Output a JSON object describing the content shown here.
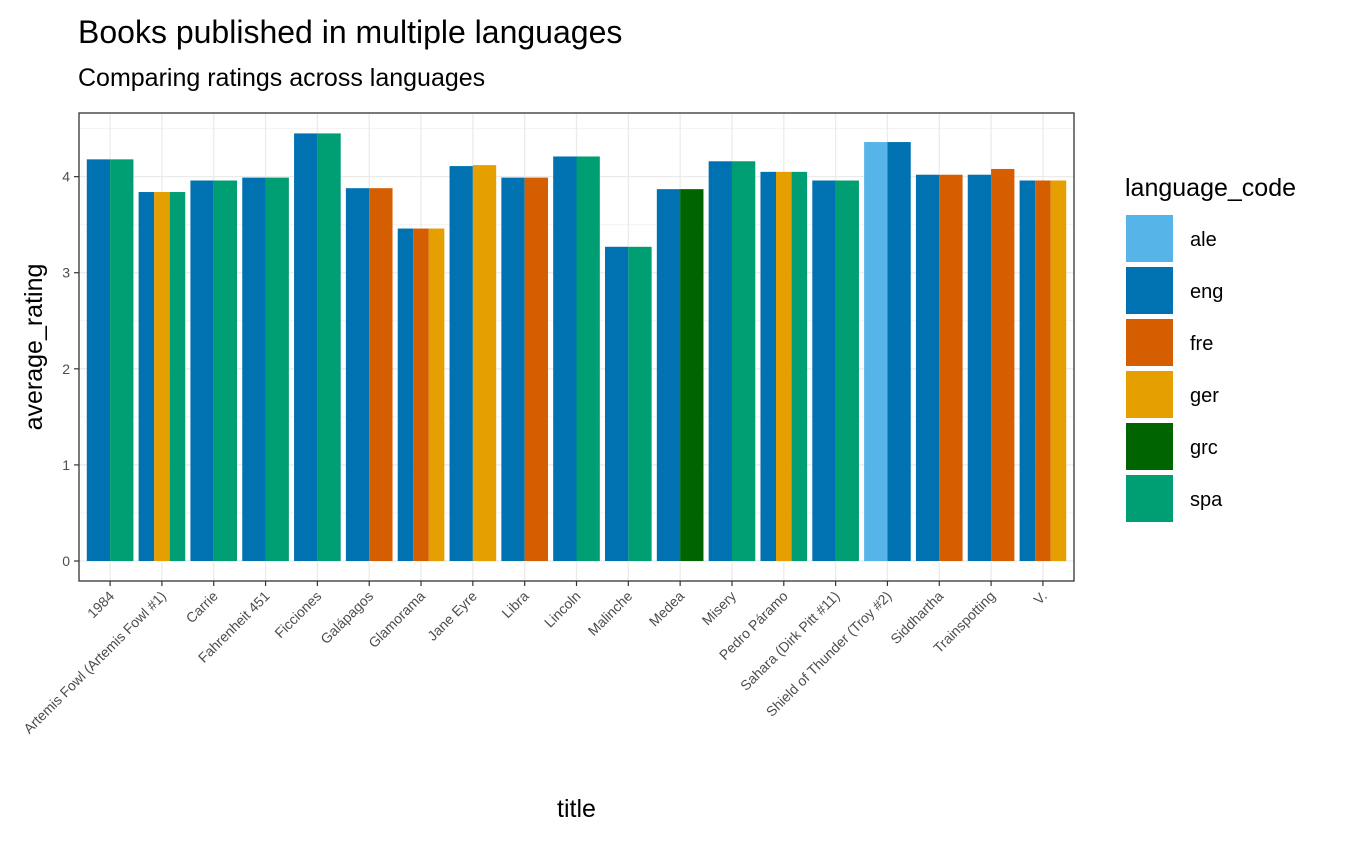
{
  "chart_data": {
    "type": "bar",
    "title": "Books published in multiple languages",
    "subtitle": "Comparing ratings across languages",
    "xlabel": "title",
    "ylabel": "average_rating",
    "ylim": [
      0,
      4.6
    ],
    "yticks": [
      0,
      1,
      2,
      3,
      4
    ],
    "grid": true,
    "legend_placement": "right",
    "legend_title": "language_code",
    "languages": [
      {
        "code": "ale",
        "color": "#56B4E9"
      },
      {
        "code": "eng",
        "color": "#0072B2"
      },
      {
        "code": "fre",
        "color": "#D55E00"
      },
      {
        "code": "ger",
        "color": "#E69F00"
      },
      {
        "code": "grc",
        "color": "#006400"
      },
      {
        "code": "spa",
        "color": "#009E73"
      }
    ],
    "categories": [
      {
        "title": "1984",
        "bars": [
          {
            "lang": "eng",
            "value": 4.18
          },
          {
            "lang": "spa",
            "value": 4.18
          }
        ]
      },
      {
        "title": "Artemis Fowl (Artemis Fowl  #1)",
        "bars": [
          {
            "lang": "eng",
            "value": 3.84
          },
          {
            "lang": "ger",
            "value": 3.84
          },
          {
            "lang": "spa",
            "value": 3.84
          }
        ]
      },
      {
        "title": "Carrie",
        "bars": [
          {
            "lang": "eng",
            "value": 3.96
          },
          {
            "lang": "spa",
            "value": 3.96
          }
        ]
      },
      {
        "title": "Fahrenheit 451",
        "bars": [
          {
            "lang": "eng",
            "value": 3.99
          },
          {
            "lang": "spa",
            "value": 3.99
          }
        ]
      },
      {
        "title": "Ficciones",
        "bars": [
          {
            "lang": "eng",
            "value": 4.45
          },
          {
            "lang": "spa",
            "value": 4.45
          }
        ]
      },
      {
        "title": "Galápagos",
        "bars": [
          {
            "lang": "eng",
            "value": 3.88
          },
          {
            "lang": "fre",
            "value": 3.88
          }
        ]
      },
      {
        "title": "Glamorama",
        "bars": [
          {
            "lang": "eng",
            "value": 3.46
          },
          {
            "lang": "fre",
            "value": 3.46
          },
          {
            "lang": "ger",
            "value": 3.46
          }
        ]
      },
      {
        "title": "Jane Eyre",
        "bars": [
          {
            "lang": "eng",
            "value": 4.11
          },
          {
            "lang": "ger",
            "value": 4.12
          }
        ]
      },
      {
        "title": "Libra",
        "bars": [
          {
            "lang": "eng",
            "value": 3.99
          },
          {
            "lang": "fre",
            "value": 3.99
          }
        ]
      },
      {
        "title": "Lincoln",
        "bars": [
          {
            "lang": "eng",
            "value": 4.21
          },
          {
            "lang": "spa",
            "value": 4.21
          }
        ]
      },
      {
        "title": "Malinche",
        "bars": [
          {
            "lang": "eng",
            "value": 3.27
          },
          {
            "lang": "spa",
            "value": 3.27
          }
        ]
      },
      {
        "title": "Medea",
        "bars": [
          {
            "lang": "eng",
            "value": 3.87
          },
          {
            "lang": "grc",
            "value": 3.87
          }
        ]
      },
      {
        "title": "Misery",
        "bars": [
          {
            "lang": "eng",
            "value": 4.16
          },
          {
            "lang": "spa",
            "value": 4.16
          }
        ]
      },
      {
        "title": "Pedro Páramo",
        "bars": [
          {
            "lang": "eng",
            "value": 4.05
          },
          {
            "lang": "ger",
            "value": 4.05
          },
          {
            "lang": "spa",
            "value": 4.05
          }
        ]
      },
      {
        "title": "Sahara (Dirk Pitt  #11)",
        "bars": [
          {
            "lang": "eng",
            "value": 3.96
          },
          {
            "lang": "spa",
            "value": 3.96
          }
        ]
      },
      {
        "title": "Shield of Thunder (Troy  #2)",
        "bars": [
          {
            "lang": "ale",
            "value": 4.36
          },
          {
            "lang": "eng",
            "value": 4.36
          }
        ]
      },
      {
        "title": "Siddhartha",
        "bars": [
          {
            "lang": "eng",
            "value": 4.02
          },
          {
            "lang": "fre",
            "value": 4.02
          }
        ]
      },
      {
        "title": "Trainspotting",
        "bars": [
          {
            "lang": "eng",
            "value": 4.02
          },
          {
            "lang": "fre",
            "value": 4.08
          }
        ]
      },
      {
        "title": "V.",
        "bars": [
          {
            "lang": "eng",
            "value": 3.96
          },
          {
            "lang": "fre",
            "value": 3.96
          },
          {
            "lang": "ger",
            "value": 3.96
          }
        ]
      }
    ]
  }
}
